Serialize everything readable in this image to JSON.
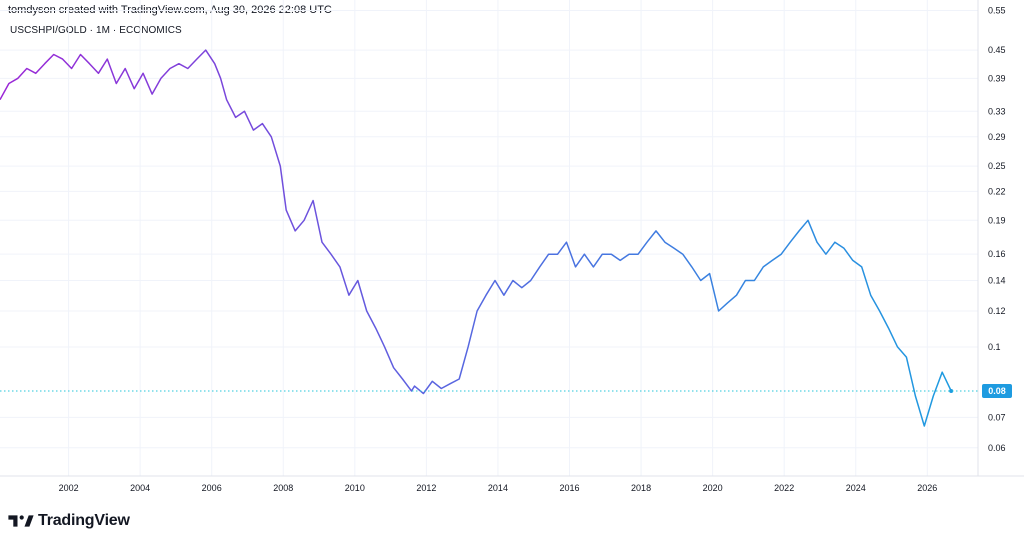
{
  "header": {
    "created_by": "tomdyson created with TradingView.com, Aug 30, 2026 22:08 UTC",
    "symbol_line": "USCSHPI/GOLD · 1M · ECONOMICS"
  },
  "brand": {
    "name": "TradingView"
  },
  "colors": {
    "line_start": "#9b27d6",
    "line_end": "#1e9be0",
    "last_price_badge": "#1e9be0",
    "grid": "#f0f3fa",
    "dotted_price_line": "#26c6da"
  },
  "chart_data": {
    "type": "line",
    "title": "USCSHPI/GOLD · 1M · ECONOMICS",
    "xlabel": "",
    "ylabel": "",
    "y_scale": "log",
    "xlim": [
      "2000-02",
      "2027-06"
    ],
    "ylim": [
      0.052,
      0.58
    ],
    "x_ticks": [
      "2002",
      "2004",
      "2006",
      "2008",
      "2010",
      "2012",
      "2014",
      "2016",
      "2018",
      "2020",
      "2022",
      "2024",
      "2026"
    ],
    "y_ticks": [
      0.55,
      0.45,
      0.39,
      0.33,
      0.29,
      0.25,
      0.22,
      0.19,
      0.16,
      0.14,
      0.12,
      0.1,
      0.07,
      0.06
    ],
    "y_tick_labels": [
      "0.55",
      "0.45",
      "0.39",
      "0.33",
      "0.29",
      "0.25",
      "0.22",
      "0.19",
      "0.16",
      "0.14",
      "0.12",
      "0.1",
      "0.07",
      "0.06"
    ],
    "last_value": 0.08,
    "last_value_label": "0.08",
    "grid": true,
    "series": [
      {
        "x": [
          "2000-02",
          "2000-05",
          "2000-08",
          "2000-11",
          "2001-02",
          "2001-05",
          "2001-08",
          "2001-11",
          "2002-02",
          "2002-05",
          "2002-08",
          "2002-11",
          "2003-02",
          "2003-05",
          "2003-08",
          "2003-11",
          "2004-02",
          "2004-05",
          "2004-08",
          "2004-11",
          "2005-02",
          "2005-05",
          "2005-08",
          "2005-11",
          "2006-02",
          "2006-04",
          "2006-06",
          "2006-09",
          "2006-12",
          "2007-03",
          "2007-06",
          "2007-09",
          "2007-12",
          "2008-02",
          "2008-05",
          "2008-08",
          "2008-11",
          "2009-02",
          "2009-05",
          "2009-08",
          "2009-11",
          "2010-02",
          "2010-05",
          "2010-08",
          "2010-11",
          "2011-02",
          "2011-05",
          "2011-08",
          "2011-09",
          "2011-12",
          "2012-03",
          "2012-06",
          "2012-09",
          "2012-12",
          "2013-03",
          "2013-06",
          "2013-09",
          "2013-12",
          "2014-03",
          "2014-06",
          "2014-09",
          "2014-12",
          "2015-03",
          "2015-06",
          "2015-09",
          "2015-12",
          "2016-03",
          "2016-06",
          "2016-09",
          "2016-12",
          "2017-03",
          "2017-06",
          "2017-09",
          "2017-12",
          "2018-03",
          "2018-06",
          "2018-09",
          "2018-12",
          "2019-03",
          "2019-06",
          "2019-09",
          "2019-12",
          "2020-03",
          "2020-06",
          "2020-09",
          "2020-12",
          "2021-03",
          "2021-06",
          "2021-09",
          "2021-12",
          "2022-03",
          "2022-06",
          "2022-09",
          "2022-12",
          "2023-03",
          "2023-06",
          "2023-09",
          "2023-12",
          "2024-03",
          "2024-06",
          "2024-09",
          "2024-12",
          "2025-03",
          "2025-06",
          "2025-09",
          "2025-12",
          "2026-03",
          "2026-06",
          "2026-09"
        ],
        "values": [
          0.35,
          0.38,
          0.39,
          0.41,
          0.4,
          0.42,
          0.44,
          0.43,
          0.41,
          0.44,
          0.42,
          0.4,
          0.43,
          0.38,
          0.41,
          0.37,
          0.4,
          0.36,
          0.39,
          0.41,
          0.42,
          0.41,
          0.43,
          0.45,
          0.42,
          0.39,
          0.35,
          0.32,
          0.33,
          0.3,
          0.31,
          0.29,
          0.25,
          0.2,
          0.18,
          0.19,
          0.21,
          0.17,
          0.16,
          0.15,
          0.13,
          0.14,
          0.12,
          0.11,
          0.1,
          0.09,
          0.085,
          0.08,
          0.082,
          0.079,
          0.084,
          0.081,
          0.083,
          0.085,
          0.1,
          0.12,
          0.13,
          0.14,
          0.13,
          0.14,
          0.135,
          0.14,
          0.15,
          0.16,
          0.16,
          0.17,
          0.15,
          0.16,
          0.15,
          0.16,
          0.16,
          0.155,
          0.16,
          0.16,
          0.17,
          0.18,
          0.17,
          0.165,
          0.16,
          0.15,
          0.14,
          0.145,
          0.12,
          0.125,
          0.13,
          0.14,
          0.14,
          0.15,
          0.155,
          0.16,
          0.17,
          0.18,
          0.19,
          0.17,
          0.16,
          0.17,
          0.165,
          0.155,
          0.15,
          0.13,
          0.12,
          0.11,
          0.1,
          0.095,
          0.078,
          0.067,
          0.078,
          0.088,
          0.08
        ]
      }
    ]
  }
}
